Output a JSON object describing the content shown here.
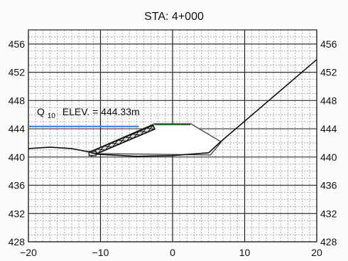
{
  "title": "STA: 4+000",
  "annotation": {
    "label_prefix": "Q",
    "label_subscript": "10",
    "label_suffix": "ELEV. = 444.33m"
  },
  "colors": {
    "water_line": "#2f7fd6",
    "ground": "#111111",
    "road_top": "#2e6b2a",
    "grid": "#9aa0a3",
    "axis": "#222222"
  },
  "chart_data": {
    "type": "cross-section",
    "title": "STA: 4+000",
    "x_range": [
      -20,
      20
    ],
    "y_range": [
      428,
      458
    ],
    "x_ticks": [
      -20,
      -10,
      0,
      10,
      20
    ],
    "y_ticks": [
      428,
      432,
      436,
      440,
      444,
      448,
      452,
      456
    ],
    "grid": true,
    "water_level": 444.33,
    "existing_ground": [
      {
        "x": -20,
        "y": 441.2
      },
      {
        "x": -17,
        "y": 441.4
      },
      {
        "x": -14,
        "y": 441.2
      },
      {
        "x": -11.5,
        "y": 440.7
      },
      {
        "x": -10.5,
        "y": 440.4
      },
      {
        "x": -5,
        "y": 440.1
      },
      {
        "x": 0,
        "y": 440.2
      },
      {
        "x": 5,
        "y": 440.6
      },
      {
        "x": 6.6,
        "y": 442.1
      },
      {
        "x": 20,
        "y": 453.8
      }
    ],
    "embankment": [
      {
        "x": -11.5,
        "y": 440.6
      },
      {
        "x": -2.5,
        "y": 444.6
      },
      {
        "x": 2.5,
        "y": 444.6
      },
      {
        "x": 6.6,
        "y": 442.1
      },
      {
        "x": 5.2,
        "y": 440.4
      },
      {
        "x": -11.5,
        "y": 440.6
      }
    ],
    "road_top": [
      {
        "x": -2.5,
        "y": 444.6
      },
      {
        "x": 2.5,
        "y": 444.6
      }
    ],
    "riprap_start": {
      "x": -11.5,
      "y": 440.7
    },
    "riprap_end": {
      "x": -2.7,
      "y": 444.5
    }
  }
}
